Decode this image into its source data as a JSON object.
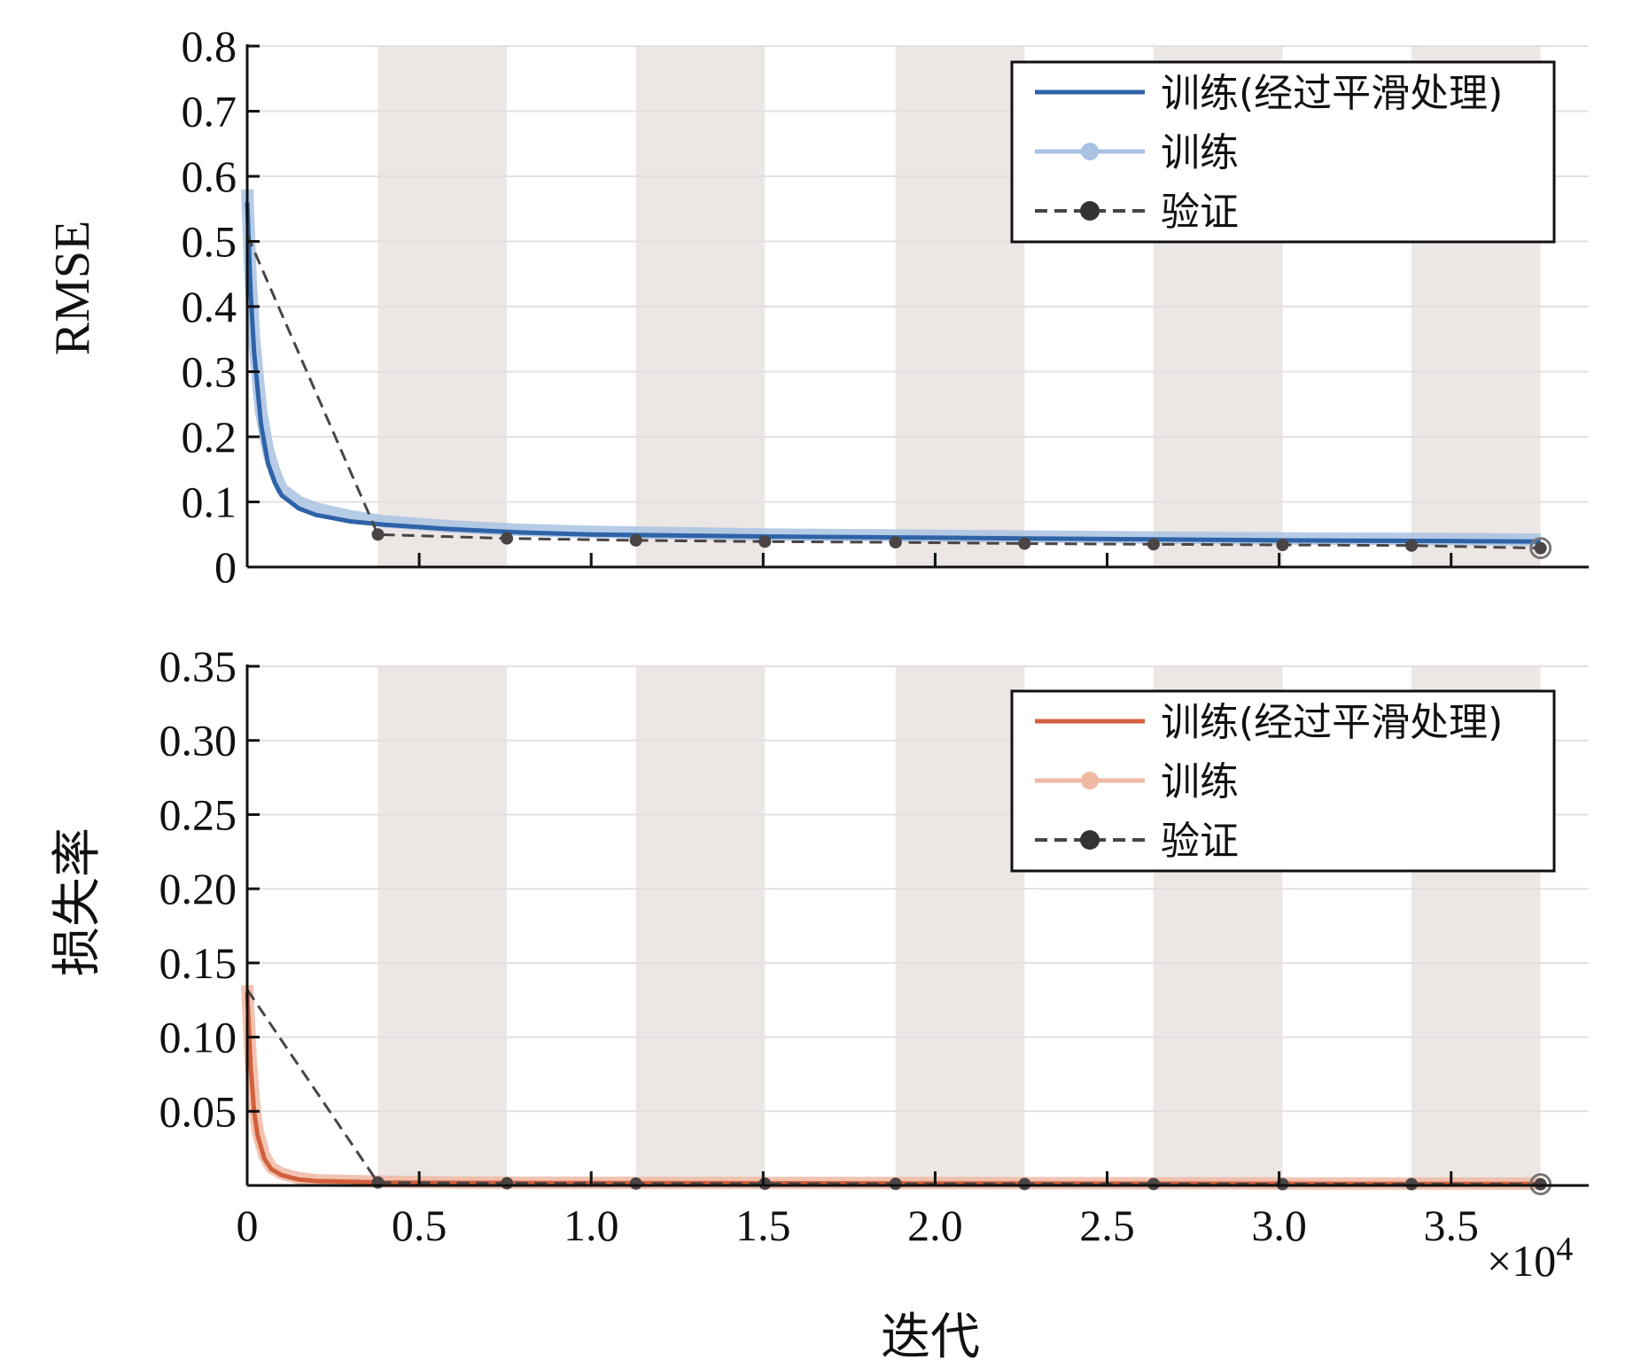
{
  "colors": {
    "band": "#ece6e4",
    "grid": "#e4e0e0",
    "rmse_smooth": "#2f63a8",
    "rmse_raw": "#a9c2e2",
    "loss_smooth": "#d2603c",
    "loss_raw": "#f0b9a4",
    "validation": "#4a4444"
  },
  "xaxis": {
    "label": "迭代",
    "multiplier": "×10",
    "multiplier_exp": "4",
    "ticks": [
      0,
      0.5,
      1.0,
      1.5,
      2.0,
      2.5,
      3.0,
      3.5
    ],
    "tick_labels": [
      "0",
      "0.5",
      "1.0",
      "1.5",
      "2.0",
      "2.5",
      "3.0",
      "3.5"
    ],
    "range": [
      0,
      3.9
    ]
  },
  "chart_data": [
    {
      "type": "line",
      "ylabel": "RMSE",
      "ylim": [
        0,
        0.8
      ],
      "yticks": [
        0,
        0.1,
        0.2,
        0.3,
        0.4,
        0.5,
        0.6,
        0.7,
        0.8
      ],
      "ytick_labels": [
        "0",
        "0.1",
        "0.2",
        "0.3",
        "0.4",
        "0.5",
        "0.6",
        "0.7",
        "0.8"
      ],
      "grid": true,
      "legend_position": "top-right",
      "epoch_bands": [
        [
          0.38,
          0.755
        ],
        [
          1.13,
          1.505
        ],
        [
          1.885,
          2.26
        ],
        [
          2.635,
          3.01
        ],
        [
          3.385,
          3.76
        ]
      ],
      "series": [
        {
          "name": "训练(经过平滑处理)",
          "role": "smooth",
          "x": [
            0,
            0.01,
            0.02,
            0.04,
            0.06,
            0.08,
            0.1,
            0.15,
            0.2,
            0.3,
            0.4,
            0.6,
            0.8,
            1.0,
            1.5,
            2.0,
            2.5,
            3.0,
            3.5,
            3.76
          ],
          "y": [
            0.56,
            0.42,
            0.33,
            0.22,
            0.16,
            0.13,
            0.11,
            0.09,
            0.08,
            0.07,
            0.065,
            0.058,
            0.053,
            0.05,
            0.047,
            0.045,
            0.043,
            0.041,
            0.04,
            0.039
          ]
        },
        {
          "name": "训练",
          "role": "raw",
          "x": [
            0,
            0.01,
            0.02,
            0.04,
            0.06,
            0.08,
            0.1,
            0.15,
            0.2,
            0.3,
            0.4,
            0.6,
            0.8,
            1.0,
            1.5,
            2.0,
            2.5,
            3.0,
            3.5,
            3.76
          ],
          "y": [
            0.58,
            0.44,
            0.35,
            0.24,
            0.18,
            0.145,
            0.12,
            0.1,
            0.09,
            0.078,
            0.07,
            0.062,
            0.057,
            0.054,
            0.05,
            0.048,
            0.046,
            0.044,
            0.043,
            0.042
          ]
        },
        {
          "name": "验证",
          "role": "validation",
          "x": [
            0,
            0.38,
            0.755,
            1.13,
            1.505,
            1.885,
            2.26,
            2.635,
            3.01,
            3.385,
            3.76
          ],
          "y": [
            0.51,
            0.05,
            0.044,
            0.041,
            0.039,
            0.038,
            0.036,
            0.035,
            0.034,
            0.033,
            0.029
          ]
        }
      ]
    },
    {
      "type": "line",
      "ylabel": "损失率",
      "ylim": [
        0,
        0.35
      ],
      "yticks": [
        0.05,
        0.1,
        0.15,
        0.2,
        0.25,
        0.3,
        0.35
      ],
      "ytick_labels": [
        "0.05",
        "0.10",
        "0.15",
        "0.20",
        "0.25",
        "0.30",
        "0.35"
      ],
      "grid": true,
      "legend_position": "top-right",
      "epoch_bands": [
        [
          0.38,
          0.755
        ],
        [
          1.13,
          1.505
        ],
        [
          1.885,
          2.26
        ],
        [
          2.635,
          3.01
        ],
        [
          3.385,
          3.76
        ]
      ],
      "series": [
        {
          "name": "训练(经过平滑处理)",
          "role": "smooth",
          "x": [
            0,
            0.01,
            0.02,
            0.03,
            0.05,
            0.07,
            0.1,
            0.15,
            0.2,
            0.3,
            0.4,
            0.6,
            1.0,
            2.0,
            3.0,
            3.76
          ],
          "y": [
            0.13,
            0.08,
            0.05,
            0.034,
            0.018,
            0.011,
            0.007,
            0.004,
            0.003,
            0.0025,
            0.002,
            0.0018,
            0.0016,
            0.0014,
            0.0012,
            0.001
          ]
        },
        {
          "name": "训练",
          "role": "raw",
          "x": [
            0,
            0.01,
            0.02,
            0.03,
            0.05,
            0.07,
            0.1,
            0.15,
            0.2,
            0.3,
            0.4,
            0.6,
            1.0,
            2.0,
            3.0,
            3.76
          ],
          "y": [
            0.135,
            0.085,
            0.055,
            0.037,
            0.02,
            0.012,
            0.008,
            0.005,
            0.0035,
            0.003,
            0.0025,
            0.002,
            0.0018,
            0.0016,
            0.0014,
            0.0012
          ]
        },
        {
          "name": "验证",
          "role": "validation",
          "x": [
            0,
            0.38,
            0.755,
            1.13,
            1.505,
            1.885,
            2.26,
            2.635,
            3.01,
            3.385,
            3.76
          ],
          "y": [
            0.132,
            0.002,
            0.0015,
            0.0013,
            0.0012,
            0.0011,
            0.001,
            0.001,
            0.0009,
            0.0009,
            0.0008
          ]
        }
      ]
    }
  ]
}
